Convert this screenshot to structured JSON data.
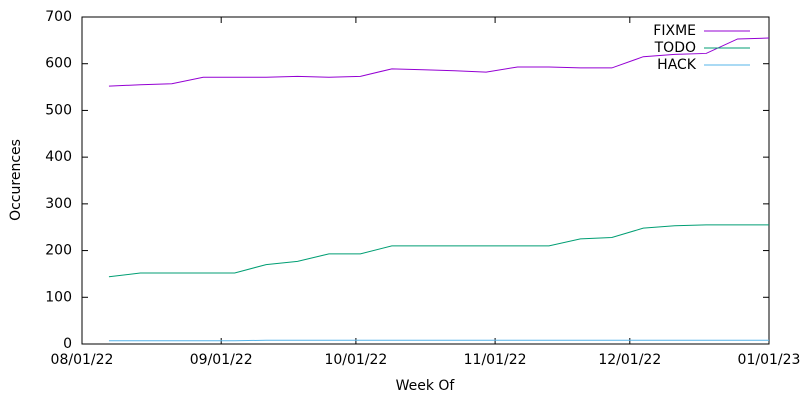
{
  "chart_data": {
    "type": "line",
    "x_label": "Week Of",
    "y_label": "Occurences",
    "x": [
      "2022-08-07",
      "2022-08-14",
      "2022-08-21",
      "2022-08-28",
      "2022-09-04",
      "2022-09-11",
      "2022-09-18",
      "2022-09-25",
      "2022-10-02",
      "2022-10-09",
      "2022-10-16",
      "2022-10-23",
      "2022-10-30",
      "2022-11-06",
      "2022-11-13",
      "2022-11-20",
      "2022-11-27",
      "2022-12-04",
      "2022-12-11",
      "2022-12-18",
      "2022-12-25",
      "2023-01-01"
    ],
    "series": [
      {
        "name": "FIXME",
        "color": "#9400d3",
        "values": [
          552,
          555,
          557,
          571,
          571,
          571,
          573,
          571,
          573,
          589,
          587,
          585,
          582,
          593,
          593,
          591,
          591,
          615,
          620,
          622,
          653,
          655
        ]
      },
      {
        "name": "TODO",
        "color": "#009e73",
        "values": [
          144,
          152,
          152,
          152,
          152,
          170,
          177,
          193,
          193,
          210,
          210,
          210,
          210,
          210,
          210,
          225,
          228,
          248,
          253,
          255,
          255,
          255
        ]
      },
      {
        "name": "HACK",
        "color": "#56b4e9",
        "values": [
          7,
          7,
          7,
          7,
          7,
          8,
          8,
          8,
          8,
          8,
          8,
          8,
          8,
          8,
          8,
          8,
          8,
          8,
          8,
          8,
          8,
          8
        ]
      }
    ],
    "xlim": [
      "2022-08-01",
      "2023-01-01"
    ],
    "xticks": [
      {
        "value": "2022-08-01",
        "label": "08/01/22"
      },
      {
        "value": "2022-09-01",
        "label": "09/01/22"
      },
      {
        "value": "2022-10-01",
        "label": "10/01/22"
      },
      {
        "value": "2022-11-01",
        "label": "11/01/22"
      },
      {
        "value": "2022-12-01",
        "label": "12/01/22"
      },
      {
        "value": "2023-01-01",
        "label": "01/01/23"
      }
    ],
    "ylim": [
      0,
      700
    ],
    "yticks": [
      0,
      100,
      200,
      300,
      400,
      500,
      600,
      700
    ],
    "grid": false,
    "legend": "top-right"
  }
}
